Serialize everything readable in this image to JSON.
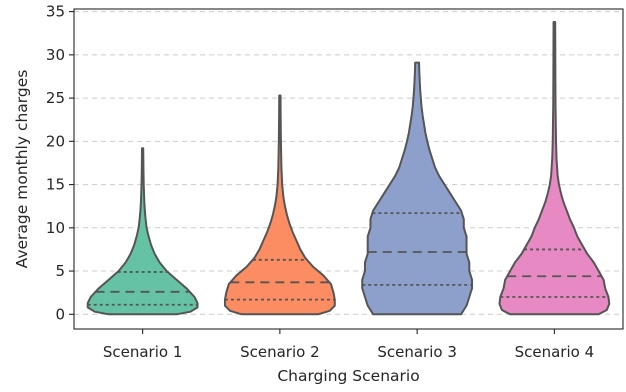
{
  "chart_data": {
    "type": "violin",
    "xlabel": "Charging Scenario",
    "ylabel": "Average monthly charges",
    "ylim": [
      -1.7,
      35.3
    ],
    "yticks": [
      0,
      5,
      10,
      15,
      20,
      25,
      30,
      35
    ],
    "categories": [
      "Scenario 1",
      "Scenario 2",
      "Scenario 3",
      "Scenario 4"
    ],
    "grid": "y-dashed",
    "inner": "quartile",
    "cut": 0,
    "series": [
      {
        "category": "Scenario 1",
        "color": "#66c2a5",
        "min": 0,
        "max": 19.2,
        "q1": 1.1,
        "median": 2.6,
        "q3": 4.9,
        "profile": [
          [
            0,
            0.34
          ],
          [
            0.3,
            0.48
          ],
          [
            0.8,
            0.55
          ],
          [
            1.3,
            0.55
          ],
          [
            2,
            0.52
          ],
          [
            3,
            0.44
          ],
          [
            4,
            0.34
          ],
          [
            5,
            0.24
          ],
          [
            6,
            0.17
          ],
          [
            7,
            0.12
          ],
          [
            8,
            0.085
          ],
          [
            9,
            0.06
          ],
          [
            10,
            0.04
          ],
          [
            11,
            0.03
          ],
          [
            12,
            0.022
          ],
          [
            13,
            0.017
          ],
          [
            15,
            0.011
          ],
          [
            17,
            0.008
          ],
          [
            19.2,
            0.006
          ]
        ]
      },
      {
        "category": "Scenario 2",
        "color": "#fc8d62",
        "min": 0,
        "max": 25.3,
        "q1": 1.7,
        "median": 3.7,
        "q3": 6.3,
        "profile": [
          [
            0,
            0.3
          ],
          [
            0.4,
            0.39
          ],
          [
            1,
            0.43
          ],
          [
            1.7,
            0.43
          ],
          [
            2.5,
            0.42
          ],
          [
            3.5,
            0.4
          ],
          [
            4.5,
            0.34
          ],
          [
            5.5,
            0.26
          ],
          [
            6.5,
            0.2
          ],
          [
            7.5,
            0.16
          ],
          [
            8.5,
            0.13
          ],
          [
            9.5,
            0.1
          ],
          [
            10.5,
            0.075
          ],
          [
            11.5,
            0.055
          ],
          [
            12.5,
            0.04
          ],
          [
            13.5,
            0.028
          ],
          [
            15,
            0.018
          ],
          [
            17,
            0.012
          ],
          [
            20,
            0.008
          ],
          [
            23,
            0.006
          ],
          [
            25.3,
            0.005
          ]
        ]
      },
      {
        "category": "Scenario 3",
        "color": "#8da0cb",
        "min": 0,
        "max": 29.1,
        "q1": 3.4,
        "median": 7.2,
        "q3": 11.7,
        "profile": [
          [
            0,
            0.16
          ],
          [
            1,
            0.18
          ],
          [
            2,
            0.19
          ],
          [
            3,
            0.2
          ],
          [
            4,
            0.2
          ],
          [
            5,
            0.19
          ],
          [
            6,
            0.19
          ],
          [
            7,
            0.18
          ],
          [
            8,
            0.18
          ],
          [
            9,
            0.18
          ],
          [
            10,
            0.17
          ],
          [
            11,
            0.17
          ],
          [
            12,
            0.16
          ],
          [
            13,
            0.14
          ],
          [
            14,
            0.12
          ],
          [
            15,
            0.1
          ],
          [
            16,
            0.08
          ],
          [
            17,
            0.065
          ],
          [
            18,
            0.055
          ],
          [
            19,
            0.045
          ],
          [
            20,
            0.037
          ],
          [
            21,
            0.03
          ],
          [
            22,
            0.025
          ],
          [
            23,
            0.02
          ],
          [
            24,
            0.016
          ],
          [
            26,
            0.011
          ],
          [
            28,
            0.008
          ],
          [
            29.1,
            0.007
          ]
        ]
      },
      {
        "category": "Scenario 4",
        "color": "#e78ac3",
        "min": 0,
        "max": 33.8,
        "q1": 2.0,
        "median": 4.4,
        "q3": 7.5,
        "profile": [
          [
            0,
            0.27
          ],
          [
            0.5,
            0.32
          ],
          [
            1.2,
            0.335
          ],
          [
            2,
            0.33
          ],
          [
            3,
            0.31
          ],
          [
            4,
            0.3
          ],
          [
            5,
            0.27
          ],
          [
            6,
            0.24
          ],
          [
            7,
            0.2
          ],
          [
            8,
            0.17
          ],
          [
            9,
            0.14
          ],
          [
            10,
            0.12
          ],
          [
            11,
            0.095
          ],
          [
            12,
            0.075
          ],
          [
            13,
            0.055
          ],
          [
            14,
            0.04
          ],
          [
            15,
            0.028
          ],
          [
            16,
            0.02
          ],
          [
            18,
            0.013
          ],
          [
            20,
            0.01
          ],
          [
            24,
            0.007
          ],
          [
            28,
            0.006
          ],
          [
            33.8,
            0.005
          ]
        ]
      }
    ]
  }
}
